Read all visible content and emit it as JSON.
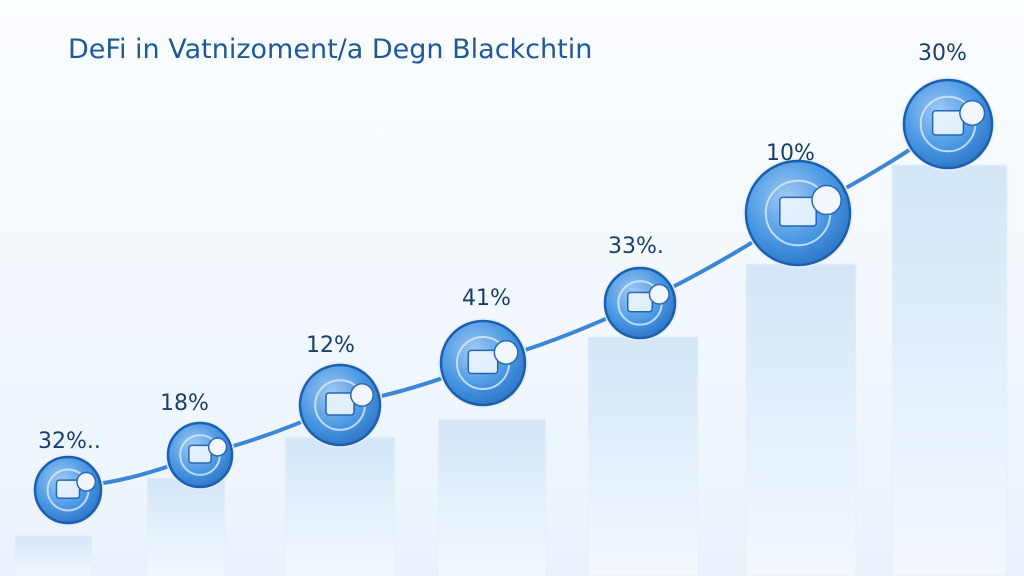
{
  "chart_data": {
    "type": "bar",
    "title": "DeFi in Vatnizoment/a Degn Blackchtin",
    "categories": [
      "",
      "",
      "",
      "",
      "",
      "",
      ""
    ],
    "values": [
      32,
      18,
      12,
      41,
      33,
      10,
      30
    ],
    "labels": [
      "32%..",
      "18%",
      "12%",
      "41%",
      "33%.",
      "10%",
      "30%"
    ],
    "xlabel": "",
    "ylabel": "",
    "grid": false,
    "legend": "none",
    "colors": {
      "bar_top": "#d6e8f8",
      "bar_bottom": "#f4f9fe",
      "line": "#3b86d8",
      "circle_fill": "#4a98e4",
      "circle_stroke": "#1d5fae",
      "title": "#1d5a9c",
      "label": "#1a3f6b"
    },
    "icons": [
      "wallet-icon",
      "coin-icon",
      "block-icon",
      "token-icon",
      "node-icon",
      "exchange-icon",
      "growth-arrow-icon"
    ]
  }
}
